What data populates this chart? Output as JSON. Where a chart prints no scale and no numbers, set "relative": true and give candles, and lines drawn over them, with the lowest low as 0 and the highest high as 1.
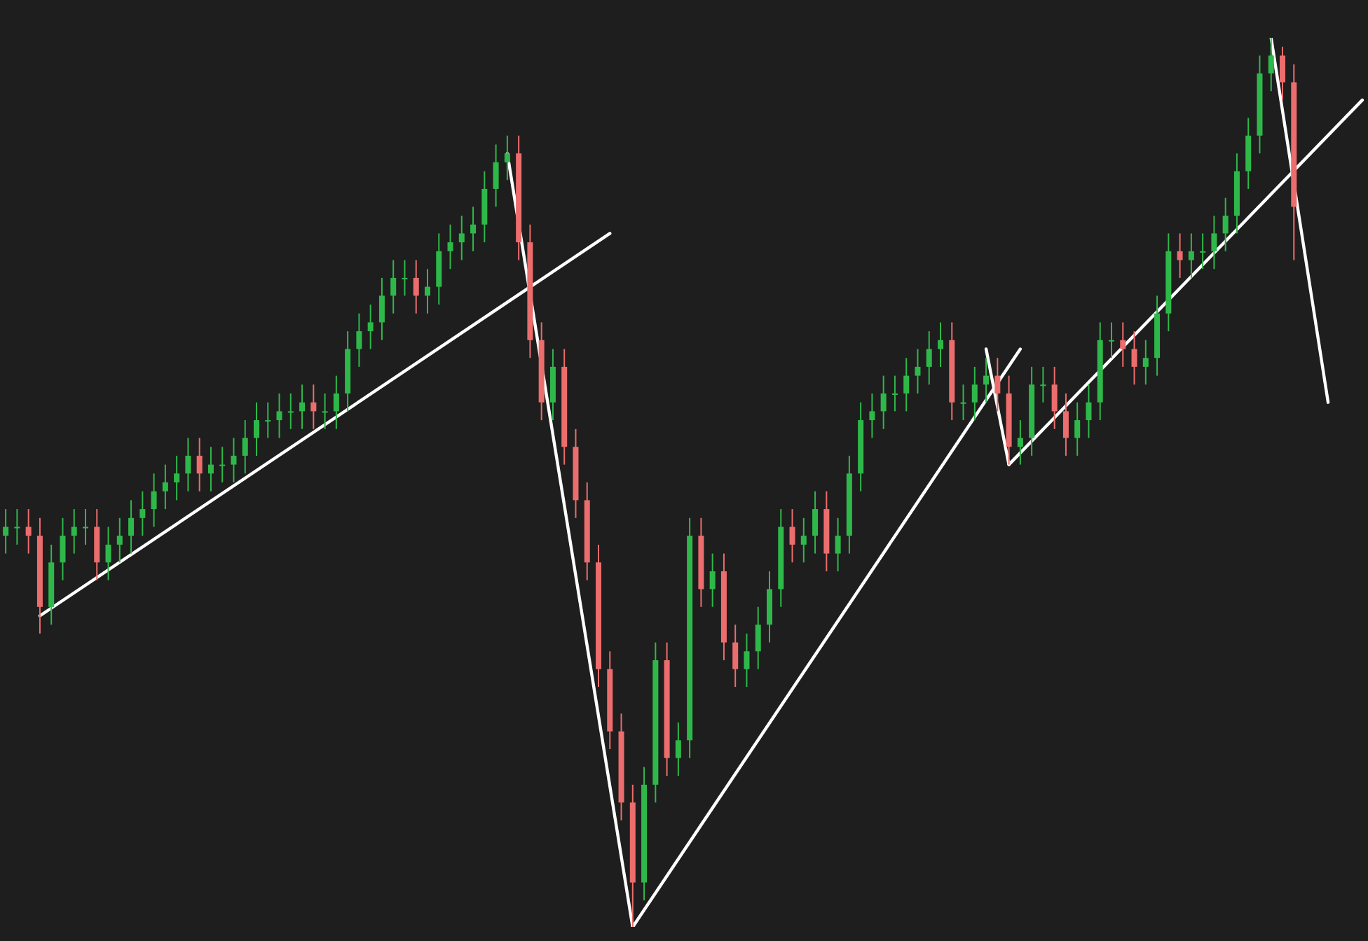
{
  "chart_data": {
    "type": "candlestick",
    "relative": true,
    "categories": [
      null,
      null,
      null,
      null,
      null,
      null,
      null,
      null,
      null,
      null,
      null,
      null,
      null,
      null,
      null,
      null,
      null,
      null,
      null,
      null,
      null,
      null,
      null,
      null,
      null,
      null,
      null,
      null,
      null,
      null,
      null,
      null,
      null,
      null,
      null,
      null,
      null,
      null,
      null,
      null,
      null,
      null,
      null,
      null,
      null,
      null,
      null,
      null,
      null,
      null,
      null,
      null,
      null,
      null,
      null,
      null,
      null,
      null,
      null,
      null,
      null,
      null,
      null,
      null,
      null,
      null,
      null,
      null,
      null,
      null,
      null,
      null,
      null,
      null,
      null,
      null,
      null,
      null,
      null,
      null,
      null,
      null,
      null,
      null,
      null,
      null,
      null,
      null,
      null,
      null,
      null,
      null,
      null,
      null,
      null,
      null,
      null,
      null,
      null,
      null,
      null,
      null,
      null,
      null,
      null,
      null,
      null,
      null,
      null,
      null,
      null,
      null,
      null,
      null,
      null,
      null,
      null,
      null,
      null,
      null
    ],
    "ohlc": [
      [
        0.44,
        0.47,
        0.42,
        0.45
      ],
      [
        0.45,
        0.47,
        0.43,
        0.45
      ],
      [
        0.45,
        0.47,
        0.42,
        0.44
      ],
      [
        0.44,
        0.46,
        0.33,
        0.36
      ],
      [
        0.36,
        0.43,
        0.34,
        0.41
      ],
      [
        0.41,
        0.46,
        0.39,
        0.44
      ],
      [
        0.44,
        0.47,
        0.42,
        0.45
      ],
      [
        0.45,
        0.47,
        0.43,
        0.45
      ],
      [
        0.45,
        0.47,
        0.39,
        0.41
      ],
      [
        0.41,
        0.45,
        0.39,
        0.43
      ],
      [
        0.43,
        0.46,
        0.41,
        0.44
      ],
      [
        0.44,
        0.48,
        0.42,
        0.46
      ],
      [
        0.46,
        0.49,
        0.44,
        0.47
      ],
      [
        0.47,
        0.51,
        0.45,
        0.49
      ],
      [
        0.49,
        0.52,
        0.47,
        0.5
      ],
      [
        0.5,
        0.53,
        0.48,
        0.51
      ],
      [
        0.51,
        0.55,
        0.49,
        0.53
      ],
      [
        0.53,
        0.55,
        0.49,
        0.51
      ],
      [
        0.51,
        0.54,
        0.49,
        0.52
      ],
      [
        0.52,
        0.54,
        0.5,
        0.52
      ],
      [
        0.52,
        0.55,
        0.5,
        0.53
      ],
      [
        0.53,
        0.57,
        0.51,
        0.55
      ],
      [
        0.55,
        0.59,
        0.53,
        0.57
      ],
      [
        0.57,
        0.59,
        0.55,
        0.57
      ],
      [
        0.57,
        0.6,
        0.55,
        0.58
      ],
      [
        0.58,
        0.6,
        0.56,
        0.58
      ],
      [
        0.58,
        0.61,
        0.56,
        0.59
      ],
      [
        0.59,
        0.61,
        0.56,
        0.58
      ],
      [
        0.58,
        0.6,
        0.56,
        0.58
      ],
      [
        0.58,
        0.62,
        0.56,
        0.6
      ],
      [
        0.6,
        0.67,
        0.58,
        0.65
      ],
      [
        0.65,
        0.69,
        0.63,
        0.67
      ],
      [
        0.67,
        0.7,
        0.65,
        0.68
      ],
      [
        0.68,
        0.73,
        0.66,
        0.71
      ],
      [
        0.71,
        0.75,
        0.69,
        0.73
      ],
      [
        0.73,
        0.75,
        0.71,
        0.73
      ],
      [
        0.73,
        0.75,
        0.69,
        0.71
      ],
      [
        0.71,
        0.74,
        0.69,
        0.72
      ],
      [
        0.72,
        0.78,
        0.7,
        0.76
      ],
      [
        0.76,
        0.79,
        0.74,
        0.77
      ],
      [
        0.77,
        0.8,
        0.75,
        0.78
      ],
      [
        0.78,
        0.81,
        0.76,
        0.79
      ],
      [
        0.79,
        0.85,
        0.77,
        0.83
      ],
      [
        0.83,
        0.88,
        0.81,
        0.86
      ],
      [
        0.86,
        0.89,
        0.84,
        0.87
      ],
      [
        0.87,
        0.89,
        0.75,
        0.77
      ],
      [
        0.77,
        0.79,
        0.64,
        0.66
      ],
      [
        0.66,
        0.68,
        0.57,
        0.59
      ],
      [
        0.59,
        0.65,
        0.57,
        0.63
      ],
      [
        0.63,
        0.65,
        0.52,
        0.54
      ],
      [
        0.54,
        0.56,
        0.46,
        0.48
      ],
      [
        0.48,
        0.5,
        0.39,
        0.41
      ],
      [
        0.41,
        0.43,
        0.27,
        0.29
      ],
      [
        0.29,
        0.31,
        0.2,
        0.22
      ],
      [
        0.22,
        0.24,
        0.12,
        0.14
      ],
      [
        0.14,
        0.16,
        0.0,
        0.05
      ],
      [
        0.05,
        0.18,
        0.03,
        0.16
      ],
      [
        0.16,
        0.32,
        0.14,
        0.3
      ],
      [
        0.3,
        0.32,
        0.17,
        0.19
      ],
      [
        0.19,
        0.23,
        0.17,
        0.21
      ],
      [
        0.21,
        0.46,
        0.19,
        0.44
      ],
      [
        0.44,
        0.46,
        0.36,
        0.38
      ],
      [
        0.38,
        0.42,
        0.36,
        0.4
      ],
      [
        0.4,
        0.42,
        0.3,
        0.32
      ],
      [
        0.32,
        0.34,
        0.27,
        0.29
      ],
      [
        0.29,
        0.33,
        0.27,
        0.31
      ],
      [
        0.31,
        0.36,
        0.29,
        0.34
      ],
      [
        0.34,
        0.4,
        0.32,
        0.38
      ],
      [
        0.38,
        0.47,
        0.36,
        0.45
      ],
      [
        0.45,
        0.47,
        0.41,
        0.43
      ],
      [
        0.43,
        0.46,
        0.41,
        0.44
      ],
      [
        0.44,
        0.49,
        0.42,
        0.47
      ],
      [
        0.47,
        0.49,
        0.4,
        0.42
      ],
      [
        0.42,
        0.46,
        0.4,
        0.44
      ],
      [
        0.44,
        0.53,
        0.42,
        0.51
      ],
      [
        0.51,
        0.59,
        0.49,
        0.57
      ],
      [
        0.57,
        0.6,
        0.55,
        0.58
      ],
      [
        0.58,
        0.62,
        0.56,
        0.6
      ],
      [
        0.6,
        0.62,
        0.58,
        0.6
      ],
      [
        0.6,
        0.64,
        0.58,
        0.62
      ],
      [
        0.62,
        0.65,
        0.6,
        0.63
      ],
      [
        0.63,
        0.67,
        0.61,
        0.65
      ],
      [
        0.65,
        0.68,
        0.63,
        0.66
      ],
      [
        0.66,
        0.68,
        0.57,
        0.59
      ],
      [
        0.59,
        0.61,
        0.57,
        0.59
      ],
      [
        0.59,
        0.63,
        0.57,
        0.61
      ],
      [
        0.61,
        0.64,
        0.59,
        0.62
      ],
      [
        0.62,
        0.64,
        0.58,
        0.6
      ],
      [
        0.6,
        0.62,
        0.52,
        0.54
      ],
      [
        0.54,
        0.57,
        0.52,
        0.55
      ],
      [
        0.55,
        0.63,
        0.53,
        0.61
      ],
      [
        0.61,
        0.63,
        0.59,
        0.61
      ],
      [
        0.61,
        0.63,
        0.56,
        0.58
      ],
      [
        0.58,
        0.6,
        0.53,
        0.55
      ],
      [
        0.55,
        0.59,
        0.53,
        0.57
      ],
      [
        0.57,
        0.61,
        0.55,
        0.59
      ],
      [
        0.59,
        0.68,
        0.57,
        0.66
      ],
      [
        0.66,
        0.68,
        0.64,
        0.66
      ],
      [
        0.66,
        0.68,
        0.63,
        0.65
      ],
      [
        0.65,
        0.67,
        0.61,
        0.63
      ],
      [
        0.63,
        0.66,
        0.61,
        0.64
      ],
      [
        0.64,
        0.71,
        0.62,
        0.69
      ],
      [
        0.69,
        0.78,
        0.67,
        0.76
      ],
      [
        0.76,
        0.78,
        0.73,
        0.75
      ],
      [
        0.75,
        0.78,
        0.73,
        0.76
      ],
      [
        0.76,
        0.78,
        0.74,
        0.76
      ],
      [
        0.76,
        0.8,
        0.74,
        0.78
      ],
      [
        0.78,
        0.82,
        0.76,
        0.8
      ],
      [
        0.8,
        0.87,
        0.78,
        0.85
      ],
      [
        0.85,
        0.91,
        0.83,
        0.89
      ],
      [
        0.89,
        0.98,
        0.87,
        0.96
      ],
      [
        0.96,
        1.0,
        0.94,
        0.98
      ],
      [
        0.98,
        0.99,
        0.93,
        0.95
      ],
      [
        0.95,
        0.97,
        0.75,
        0.81
      ],
      null,
      null,
      null,
      null,
      null,
      null
    ],
    "series": [
      {
        "type": "line",
        "color": "#ffffff",
        "values": [
          null,
          null,
          null,
          0.35,
          null,
          null,
          null,
          null,
          null,
          null,
          null,
          null,
          null,
          null,
          null,
          null,
          null,
          null,
          null,
          null,
          null,
          null,
          null,
          null,
          null,
          null,
          null,
          null,
          null,
          null,
          null,
          null,
          null,
          null,
          null,
          null,
          null,
          null,
          null,
          null,
          null,
          null,
          null,
          null,
          null,
          null,
          null,
          null,
          null,
          null,
          null,
          null,
          null,
          0.78,
          null,
          null,
          null,
          null,
          null,
          null,
          null,
          null,
          null,
          null,
          null,
          null,
          null,
          null,
          null,
          null,
          null,
          null,
          null,
          null,
          null,
          null,
          null,
          null,
          null,
          null,
          null,
          null,
          null,
          null,
          null,
          null,
          null,
          null,
          null,
          null,
          null,
          null,
          null,
          null,
          null,
          null,
          null,
          null,
          null,
          null,
          null,
          null,
          null,
          null,
          null,
          null,
          null,
          null,
          null,
          null,
          null,
          null,
          null,
          null,
          null,
          null,
          null,
          null,
          null,
          null
        ]
      },
      {
        "type": "line",
        "color": "#ffffff",
        "values": [
          null,
          null,
          null,
          null,
          null,
          null,
          null,
          null,
          null,
          null,
          null,
          null,
          null,
          null,
          null,
          null,
          null,
          null,
          null,
          null,
          null,
          null,
          null,
          null,
          null,
          null,
          null,
          null,
          null,
          null,
          null,
          null,
          null,
          null,
          null,
          null,
          null,
          null,
          null,
          null,
          null,
          null,
          null,
          null,
          0.87,
          null,
          null,
          null,
          null,
          null,
          null,
          null,
          null,
          null,
          null,
          0.0,
          null,
          null,
          null,
          null,
          null,
          null,
          null,
          null,
          null,
          null,
          null,
          null,
          null,
          null,
          null,
          null,
          null,
          null,
          null,
          null,
          null,
          null,
          null,
          null,
          null,
          null,
          null,
          null,
          null,
          null,
          null,
          null,
          null,
          null,
          null,
          null,
          null,
          null,
          null,
          null,
          null,
          null,
          null,
          null,
          null,
          null,
          null,
          null,
          null,
          null,
          null,
          null,
          null,
          null,
          null,
          null,
          null,
          null,
          null,
          null,
          null,
          null,
          null,
          null
        ]
      },
      {
        "type": "line",
        "color": "#ffffff",
        "values": [
          null,
          null,
          null,
          null,
          null,
          null,
          null,
          null,
          null,
          null,
          null,
          null,
          null,
          null,
          null,
          null,
          null,
          null,
          null,
          null,
          null,
          null,
          null,
          null,
          null,
          null,
          null,
          null,
          null,
          null,
          null,
          null,
          null,
          null,
          null,
          null,
          null,
          null,
          null,
          null,
          null,
          null,
          null,
          null,
          null,
          null,
          null,
          null,
          null,
          null,
          null,
          null,
          null,
          null,
          null,
          0.0,
          null,
          null,
          null,
          null,
          null,
          null,
          null,
          null,
          null,
          null,
          null,
          null,
          null,
          null,
          null,
          null,
          null,
          null,
          null,
          null,
          null,
          null,
          null,
          null,
          null,
          null,
          null,
          null,
          null,
          null,
          null,
          null,
          null,
          0.65,
          null,
          null,
          null,
          null,
          null,
          null,
          null,
          null,
          null,
          null,
          null,
          null,
          null,
          null,
          null,
          null,
          null,
          null,
          null,
          null,
          null,
          null,
          null,
          null,
          null,
          null,
          null,
          null,
          null,
          null
        ]
      },
      {
        "type": "line",
        "color": "#ffffff",
        "values": [
          null,
          null,
          null,
          null,
          null,
          null,
          null,
          null,
          null,
          null,
          null,
          null,
          null,
          null,
          null,
          null,
          null,
          null,
          null,
          null,
          null,
          null,
          null,
          null,
          null,
          null,
          null,
          null,
          null,
          null,
          null,
          null,
          null,
          null,
          null,
          null,
          null,
          null,
          null,
          null,
          null,
          null,
          null,
          null,
          null,
          null,
          null,
          null,
          null,
          null,
          null,
          null,
          null,
          null,
          null,
          null,
          null,
          null,
          null,
          null,
          null,
          null,
          null,
          null,
          null,
          null,
          null,
          null,
          null,
          null,
          null,
          null,
          null,
          null,
          null,
          null,
          null,
          null,
          null,
          null,
          null,
          null,
          null,
          null,
          null,
          null,
          0.65,
          null,
          0.52,
          null,
          null,
          null,
          null,
          null,
          null,
          null,
          null,
          null,
          null,
          null,
          null,
          null,
          null,
          null,
          null,
          null,
          null,
          null,
          null,
          null,
          null,
          null,
          null,
          null,
          null,
          null,
          null,
          null,
          null,
          null
        ]
      },
      {
        "type": "line",
        "color": "#ffffff",
        "values": [
          null,
          null,
          null,
          null,
          null,
          null,
          null,
          null,
          null,
          null,
          null,
          null,
          null,
          null,
          null,
          null,
          null,
          null,
          null,
          null,
          null,
          null,
          null,
          null,
          null,
          null,
          null,
          null,
          null,
          null,
          null,
          null,
          null,
          null,
          null,
          null,
          null,
          null,
          null,
          null,
          null,
          null,
          null,
          null,
          null,
          null,
          null,
          null,
          null,
          null,
          null,
          null,
          null,
          null,
          null,
          null,
          null,
          null,
          null,
          null,
          null,
          null,
          null,
          null,
          null,
          null,
          null,
          null,
          null,
          null,
          null,
          null,
          null,
          null,
          null,
          null,
          null,
          null,
          null,
          null,
          null,
          null,
          null,
          null,
          null,
          null,
          null,
          null,
          0.52,
          null,
          null,
          null,
          null,
          null,
          null,
          null,
          null,
          null,
          null,
          null,
          null,
          null,
          null,
          null,
          null,
          null,
          null,
          null,
          null,
          null,
          null,
          null,
          null,
          null,
          null,
          null,
          null,
          null,
          null,
          0.93
        ]
      },
      {
        "type": "line",
        "color": "#ffffff",
        "values": [
          null,
          null,
          null,
          null,
          null,
          null,
          null,
          null,
          null,
          null,
          null,
          null,
          null,
          null,
          null,
          null,
          null,
          null,
          null,
          null,
          null,
          null,
          null,
          null,
          null,
          null,
          null,
          null,
          null,
          null,
          null,
          null,
          null,
          null,
          null,
          null,
          null,
          null,
          null,
          null,
          null,
          null,
          null,
          null,
          null,
          null,
          null,
          null,
          null,
          null,
          null,
          null,
          null,
          null,
          null,
          null,
          null,
          null,
          null,
          null,
          null,
          null,
          null,
          null,
          null,
          null,
          null,
          null,
          null,
          null,
          null,
          null,
          null,
          null,
          null,
          null,
          null,
          null,
          null,
          null,
          null,
          null,
          null,
          null,
          null,
          null,
          null,
          null,
          null,
          null,
          null,
          null,
          null,
          null,
          null,
          null,
          null,
          null,
          null,
          null,
          null,
          null,
          null,
          null,
          null,
          null,
          null,
          null,
          null,
          null,
          null,
          1.0,
          null,
          null,
          null,
          null,
          0.59,
          null,
          null,
          null
        ]
      }
    ]
  }
}
